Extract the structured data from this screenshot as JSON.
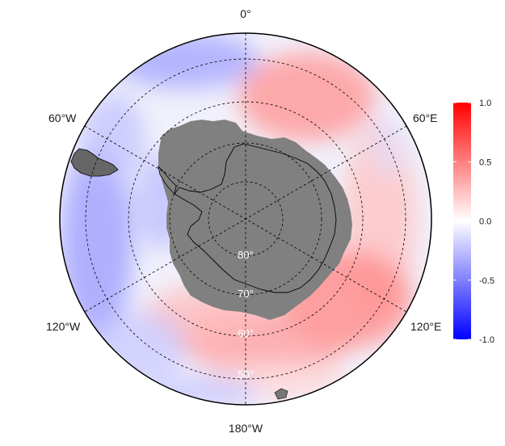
{
  "map": {
    "projection": "south-polar-stereographic",
    "lon_labels": {
      "top": "0°",
      "upper_left": "60°W",
      "upper_right": "60°E",
      "lower_left": "120°W",
      "lower_right": "120°E",
      "bottom": "180°W"
    },
    "lat_labels": {
      "lat80": "80°",
      "lat70": "70°",
      "lat60": "60°",
      "lat50": "50°"
    },
    "colors": {
      "land_mask": "#808080",
      "coastline": "#000000",
      "graticule": "#000000",
      "low": "#0000ff",
      "mid": "#ffffff",
      "high": "#ff0000"
    }
  },
  "colorbar": {
    "ticks": [
      "1.0",
      "0.5",
      "0.0",
      "-0.5",
      "-1.0"
    ],
    "tick_values": [
      1.0,
      0.5,
      0.0,
      -0.5,
      -1.0
    ],
    "min": -1.0,
    "max": 1.0
  }
}
